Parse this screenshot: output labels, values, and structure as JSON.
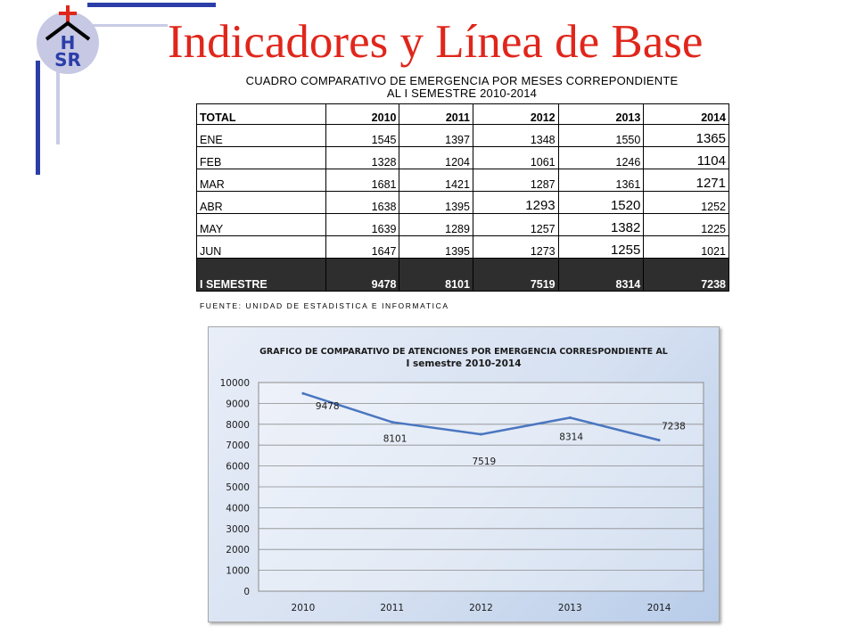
{
  "header": {
    "title": "Indicadores y Línea de Base",
    "logo_text_top": "H",
    "logo_text_bottom": "SR"
  },
  "table": {
    "caption_line1": "CUADRO COMPARATIVO DE EMERGENCIA  POR MESES  CORREPONDIENTE",
    "caption_line2": "AL I SEMESTRE 2010-2014",
    "columns": [
      "TOTAL",
      "2010",
      "2011",
      "2012",
      "2013",
      "2014"
    ],
    "rows": [
      [
        "ENE",
        "1545",
        "1397",
        "1348",
        "1550",
        "1365"
      ],
      [
        "FEB",
        "1328",
        "1204",
        "1061",
        "1246",
        "1104"
      ],
      [
        "MAR",
        "1681",
        "1421",
        "1287",
        "1361",
        "1271"
      ],
      [
        "ABR",
        "1638",
        "1395",
        "1293",
        "1520",
        "1252"
      ],
      [
        "MAY",
        "1639",
        "1289",
        "1257",
        "1382",
        "1225"
      ],
      [
        "JUN",
        "1647",
        "1395",
        "1273",
        "1255",
        "1021"
      ]
    ],
    "total_row": [
      "I SEMESTRE",
      "9478",
      "8101",
      "7519",
      "8314",
      "7238"
    ],
    "source": "FUENTE: UNIDAD DE ESTADISTICA E INFORMATICA"
  },
  "chart_data": {
    "type": "line",
    "title": "GRAFICO DE COMPARATIVO DE ATENCIONES POR EMERGENCIA CORRESPONDIENTE AL I semestre 2010-2014",
    "title_line1": "GRAFICO DE COMPARATIVO DE ATENCIONES POR EMERGENCIA CORRESPONDIENTE AL",
    "title_line2": "I  semestre 2010-2014",
    "categories": [
      "2010",
      "2011",
      "2012",
      "2013",
      "2014"
    ],
    "series": [
      {
        "values": [
          9478,
          8101,
          7519,
          8314,
          7238
        ],
        "color": "#4a76c0"
      }
    ],
    "data_labels": [
      "9478",
      "8101",
      "7519",
      "8314",
      "7238"
    ],
    "ylim": [
      0,
      10000
    ],
    "yticks": [
      "0",
      "1000",
      "2000",
      "3000",
      "4000",
      "5000",
      "6000",
      "7000",
      "8000",
      "9000",
      "10000"
    ],
    "grid": true,
    "legend": "none"
  },
  "colors": {
    "title": "#e0261b",
    "frame_dark": "#2b3ea8",
    "frame_light": "#c9cbe6",
    "total_row_bg": "#2e2e2e",
    "line": "#4a76c0"
  }
}
